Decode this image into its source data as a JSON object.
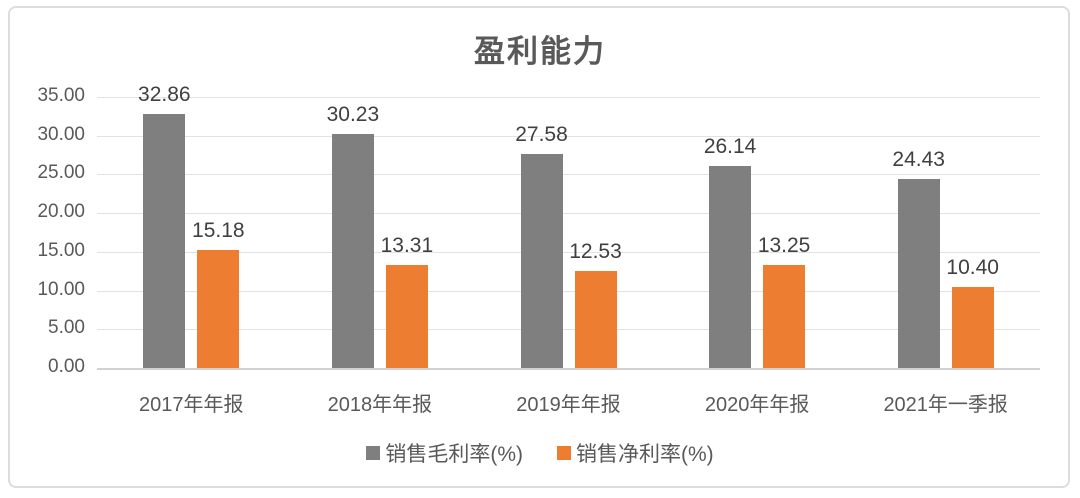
{
  "chart_data": {
    "type": "bar",
    "title": "盈利能力",
    "categories": [
      "2017年年报",
      "2018年年报",
      "2019年年报",
      "2020年年报",
      "2021年一季报"
    ],
    "series": [
      {
        "name": "销售毛利率(%)",
        "color": "#7F7F7F",
        "values": [
          32.86,
          30.23,
          27.58,
          26.14,
          24.43
        ],
        "labels": [
          "32.86",
          "30.23",
          "27.58",
          "26.14",
          "24.43"
        ]
      },
      {
        "name": "销售净利率(%)",
        "color": "#ED7D31",
        "values": [
          15.18,
          13.31,
          12.53,
          13.25,
          10.4
        ],
        "labels": [
          "15.18",
          "13.31",
          "12.53",
          "13.25",
          "10.40"
        ]
      }
    ],
    "ylim": [
      0,
      35
    ],
    "yticks": [
      "0.00",
      "5.00",
      "10.00",
      "15.00",
      "20.00",
      "25.00",
      "30.00",
      "35.00"
    ],
    "grid": true,
    "legend_position": "bottom",
    "colors": {
      "gridline": "#E2E2E2",
      "axis_text": "#595959",
      "data_label": "#404040",
      "title_text": "#595959",
      "card_border": "#DCDCDC"
    }
  }
}
